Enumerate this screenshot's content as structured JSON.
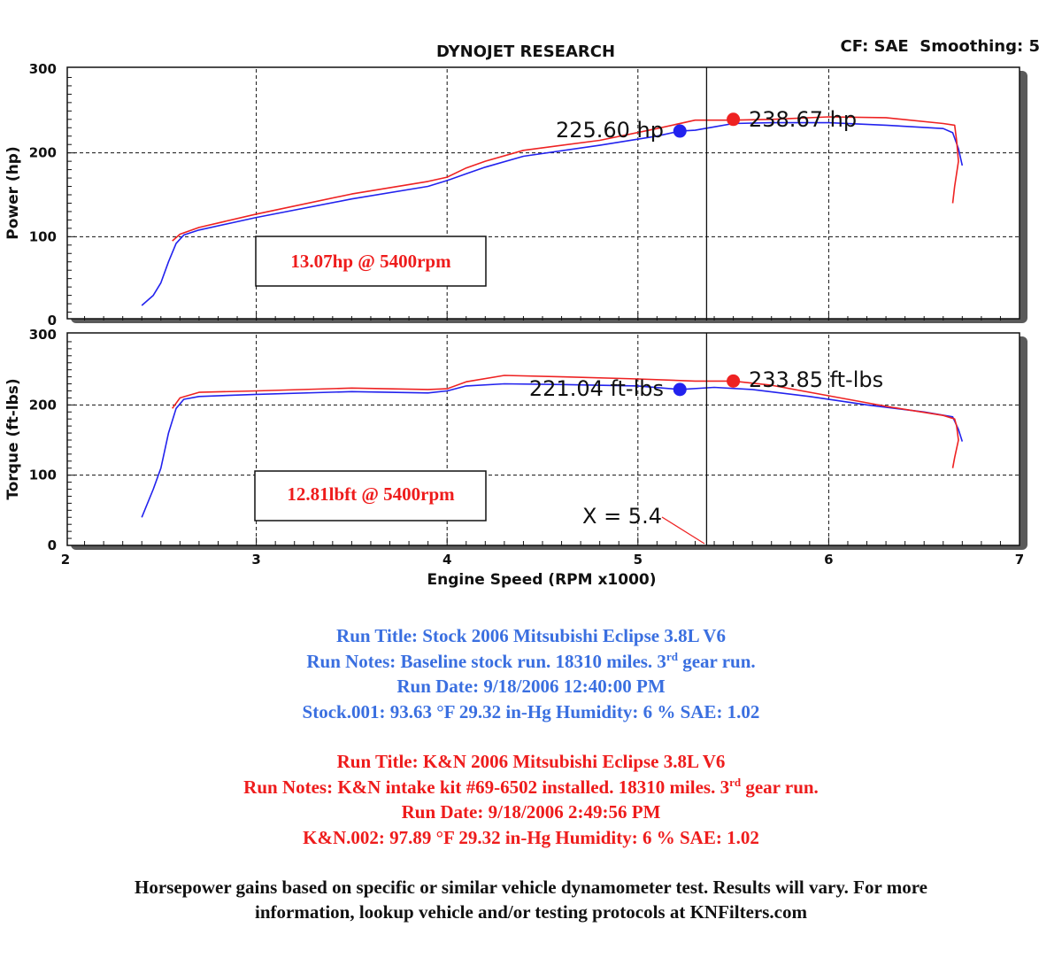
{
  "header": {
    "title": "DYNOJET RESEARCH",
    "settings": "CF: SAE  Smoothing: 5"
  },
  "chart_data": [
    {
      "type": "line",
      "id": "power",
      "ylabel": "Power (hp)",
      "xlabel": "",
      "xlim": [
        2,
        7
      ],
      "ylim": [
        0,
        300
      ],
      "yticks": [
        0,
        100,
        200,
        300
      ],
      "grid": true,
      "series": [
        {
          "color": "#2222ee",
          "x": [
            2.4,
            2.46,
            2.5,
            2.54,
            2.58,
            2.62,
            2.7,
            3.0,
            3.5,
            3.9,
            4.0,
            4.1,
            4.2,
            4.4,
            4.8,
            5.1,
            5.22,
            5.3,
            5.4,
            5.5,
            5.7,
            6.0,
            6.3,
            6.6,
            6.65,
            6.68,
            6.7
          ],
          "y": [
            18,
            30,
            45,
            70,
            92,
            102,
            108,
            123,
            145,
            160,
            167,
            175,
            183,
            196,
            209,
            220,
            226,
            227,
            231,
            235,
            236,
            236,
            233,
            229,
            224,
            205,
            185
          ]
        },
        {
          "color": "#ee2222",
          "x": [
            2.56,
            2.6,
            2.7,
            3.0,
            3.5,
            3.9,
            4.0,
            4.1,
            4.2,
            4.4,
            4.8,
            5.1,
            5.3,
            5.5,
            5.7,
            6.0,
            6.3,
            6.6,
            6.66,
            6.67,
            6.68,
            6.66,
            6.65
          ],
          "y": [
            95,
            103,
            111,
            127,
            151,
            166,
            171,
            182,
            190,
            203,
            215,
            229,
            239,
            239,
            240,
            243,
            242,
            235,
            233,
            215,
            190,
            160,
            140
          ]
        }
      ],
      "markers": [
        {
          "x": 5.22,
          "y": 226,
          "color": "#2222ee",
          "label": "225.60 hp"
        },
        {
          "x": 5.5,
          "y": 240,
          "color": "#ee2222",
          "label": "238.67 hp"
        }
      ],
      "gain_note": "13.07hp @ 5400rpm"
    },
    {
      "type": "line",
      "id": "torque",
      "ylabel": "Torque (ft-lbs)",
      "xlabel": "Engine Speed (RPM x1000)",
      "xlim": [
        2,
        7
      ],
      "ylim": [
        0,
        300
      ],
      "yticks": [
        0,
        100,
        200,
        300
      ],
      "xticks": [
        2,
        3,
        4,
        5,
        6,
        7
      ],
      "grid": true,
      "series": [
        {
          "color": "#2222ee",
          "x": [
            2.4,
            2.46,
            2.5,
            2.54,
            2.58,
            2.62,
            2.7,
            3.0,
            3.5,
            3.9,
            4.0,
            4.1,
            4.3,
            4.6,
            5.0,
            5.22,
            5.4,
            5.6,
            5.9,
            6.2,
            6.5,
            6.65,
            6.68,
            6.7
          ],
          "y": [
            40,
            80,
            110,
            160,
            195,
            208,
            212,
            215,
            219,
            217,
            220,
            227,
            230,
            229,
            227,
            222,
            225,
            222,
            212,
            200,
            190,
            183,
            165,
            148
          ]
        },
        {
          "color": "#ee2222",
          "x": [
            2.56,
            2.6,
            2.7,
            3.0,
            3.5,
            3.9,
            4.0,
            4.1,
            4.3,
            4.6,
            5.0,
            5.3,
            5.5,
            5.7,
            6.0,
            6.3,
            6.6,
            6.66,
            6.67,
            6.68,
            6.66,
            6.65
          ],
          "y": [
            195,
            210,
            218,
            220,
            224,
            222,
            223,
            233,
            242,
            240,
            237,
            234,
            234,
            228,
            213,
            198,
            185,
            180,
            170,
            150,
            125,
            110
          ]
        }
      ],
      "markers": [
        {
          "x": 5.22,
          "y": 222,
          "color": "#2222ee",
          "label": "221.04 ft-lbs"
        },
        {
          "x": 5.5,
          "y": 234,
          "color": "#ee2222",
          "label": "233.85 ft-lbs"
        }
      ],
      "gain_note": "12.81lbft @ 5400rpm",
      "cursor_label": "X = 5.4"
    }
  ],
  "cursor_x": 5.36,
  "runs": {
    "stock": {
      "title": "Run Title: Stock 2006 Mitsubishi Eclipse 3.8L V6",
      "notes_a": "Run Notes: Baseline stock run. 18310 miles. 3",
      "notes_sup": "rd",
      "notes_b": " gear run.",
      "date": "Run Date: 9/18/2006 12:40:00 PM",
      "conditions": "Stock.001: 93.63 °F 29.32 in-Hg Humidity: 6 % SAE: 1.02"
    },
    "kn": {
      "title": "Run Title: K&N 2006 Mitsubishi Eclipse 3.8L V6",
      "notes_a": "Run Notes: K&N intake kit #69-6502 installed. 18310 miles. 3",
      "notes_sup": "rd",
      "notes_b": " gear run.",
      "date": "Run Date: 9/18/2006 2:49:56 PM",
      "conditions": "K&N.002: 97.89 °F 29.32 in-Hg Humidity: 6 % SAE: 1.02"
    }
  },
  "disclaimer": {
    "line1": "Horsepower gains based on specific or similar vehicle dynamometer test. Results will vary. For more",
    "line2": "information, lookup vehicle and/or testing protocols at KNFilters.com"
  }
}
